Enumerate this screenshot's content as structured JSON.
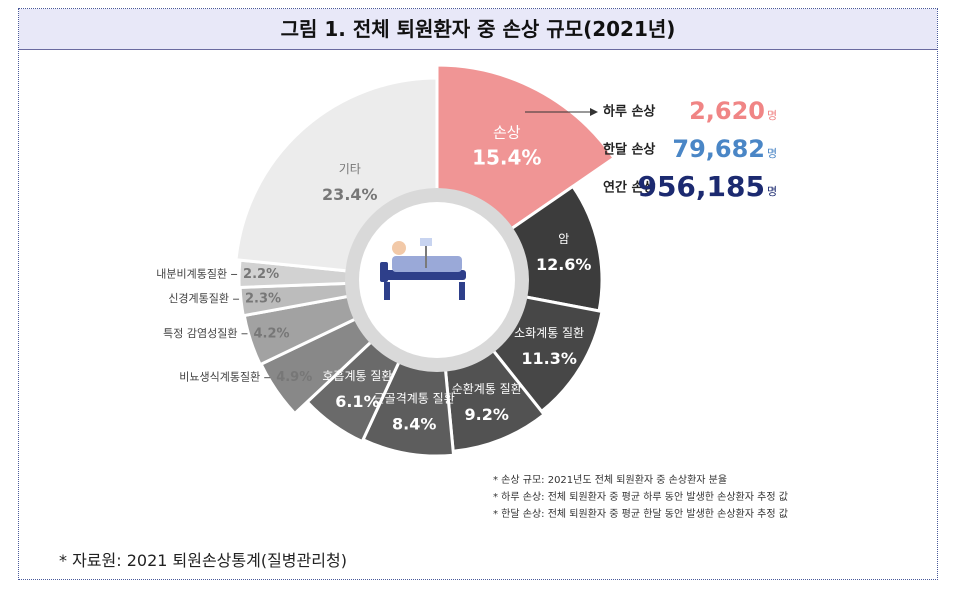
{
  "header": {
    "title": "그림 1. 전체 퇴원환자 중 손상 규모(2021년)"
  },
  "chart_data": {
    "type": "donut",
    "categories": [
      "손상",
      "암",
      "소화계통 질환",
      "순환계통 질환",
      "근골격계통 질환",
      "호흡계통 질환",
      "비뇨생식계통질환",
      "특정 감염성질환",
      "신경계통질환",
      "내분비계통질환",
      "기타"
    ],
    "values": [
      15.4,
      12.6,
      11.3,
      9.2,
      8.4,
      6.1,
      4.9,
      4.2,
      2.3,
      2.2,
      23.4
    ],
    "value_labels": [
      "15.4%",
      "12.6%",
      "11.3%",
      "9.2%",
      "8.4%",
      "6.1%",
      "4.9%",
      "4.2%",
      "2.3%",
      "2.2%",
      "23.4%"
    ],
    "colors": [
      "#f09595",
      "#3c3c3c",
      "#474747",
      "#525252",
      "#5d5d5d",
      "#6a6a6a",
      "#888888",
      "#a2a2a2",
      "#bcbcbc",
      "#d2d2d2",
      "#ececec"
    ]
  },
  "stats": [
    {
      "label": "하루 손상",
      "value": "2,620",
      "unit": "명",
      "color": "#f08585"
    },
    {
      "label": "한달 손상",
      "value": "79,682",
      "unit": "명",
      "color": "#4a86c6"
    },
    {
      "label": "연간 손상",
      "value": "956,185",
      "unit": "명",
      "color": "#1c2a70"
    }
  ],
  "notes": [
    "* 손상 규모: 2021년도 전체 퇴원환자 중 손상환자 분율",
    "* 하루 손상: 전체 퇴원환자 중 평균 하루 동안 발생한 손상환자 추정 값",
    "* 한달 손상: 전체 퇴원환자 중 평균 한달 동안 발생한 손상환자 추정 값"
  ],
  "source": "* 자료원: 2021 퇴원손상통계(질병관리청)"
}
